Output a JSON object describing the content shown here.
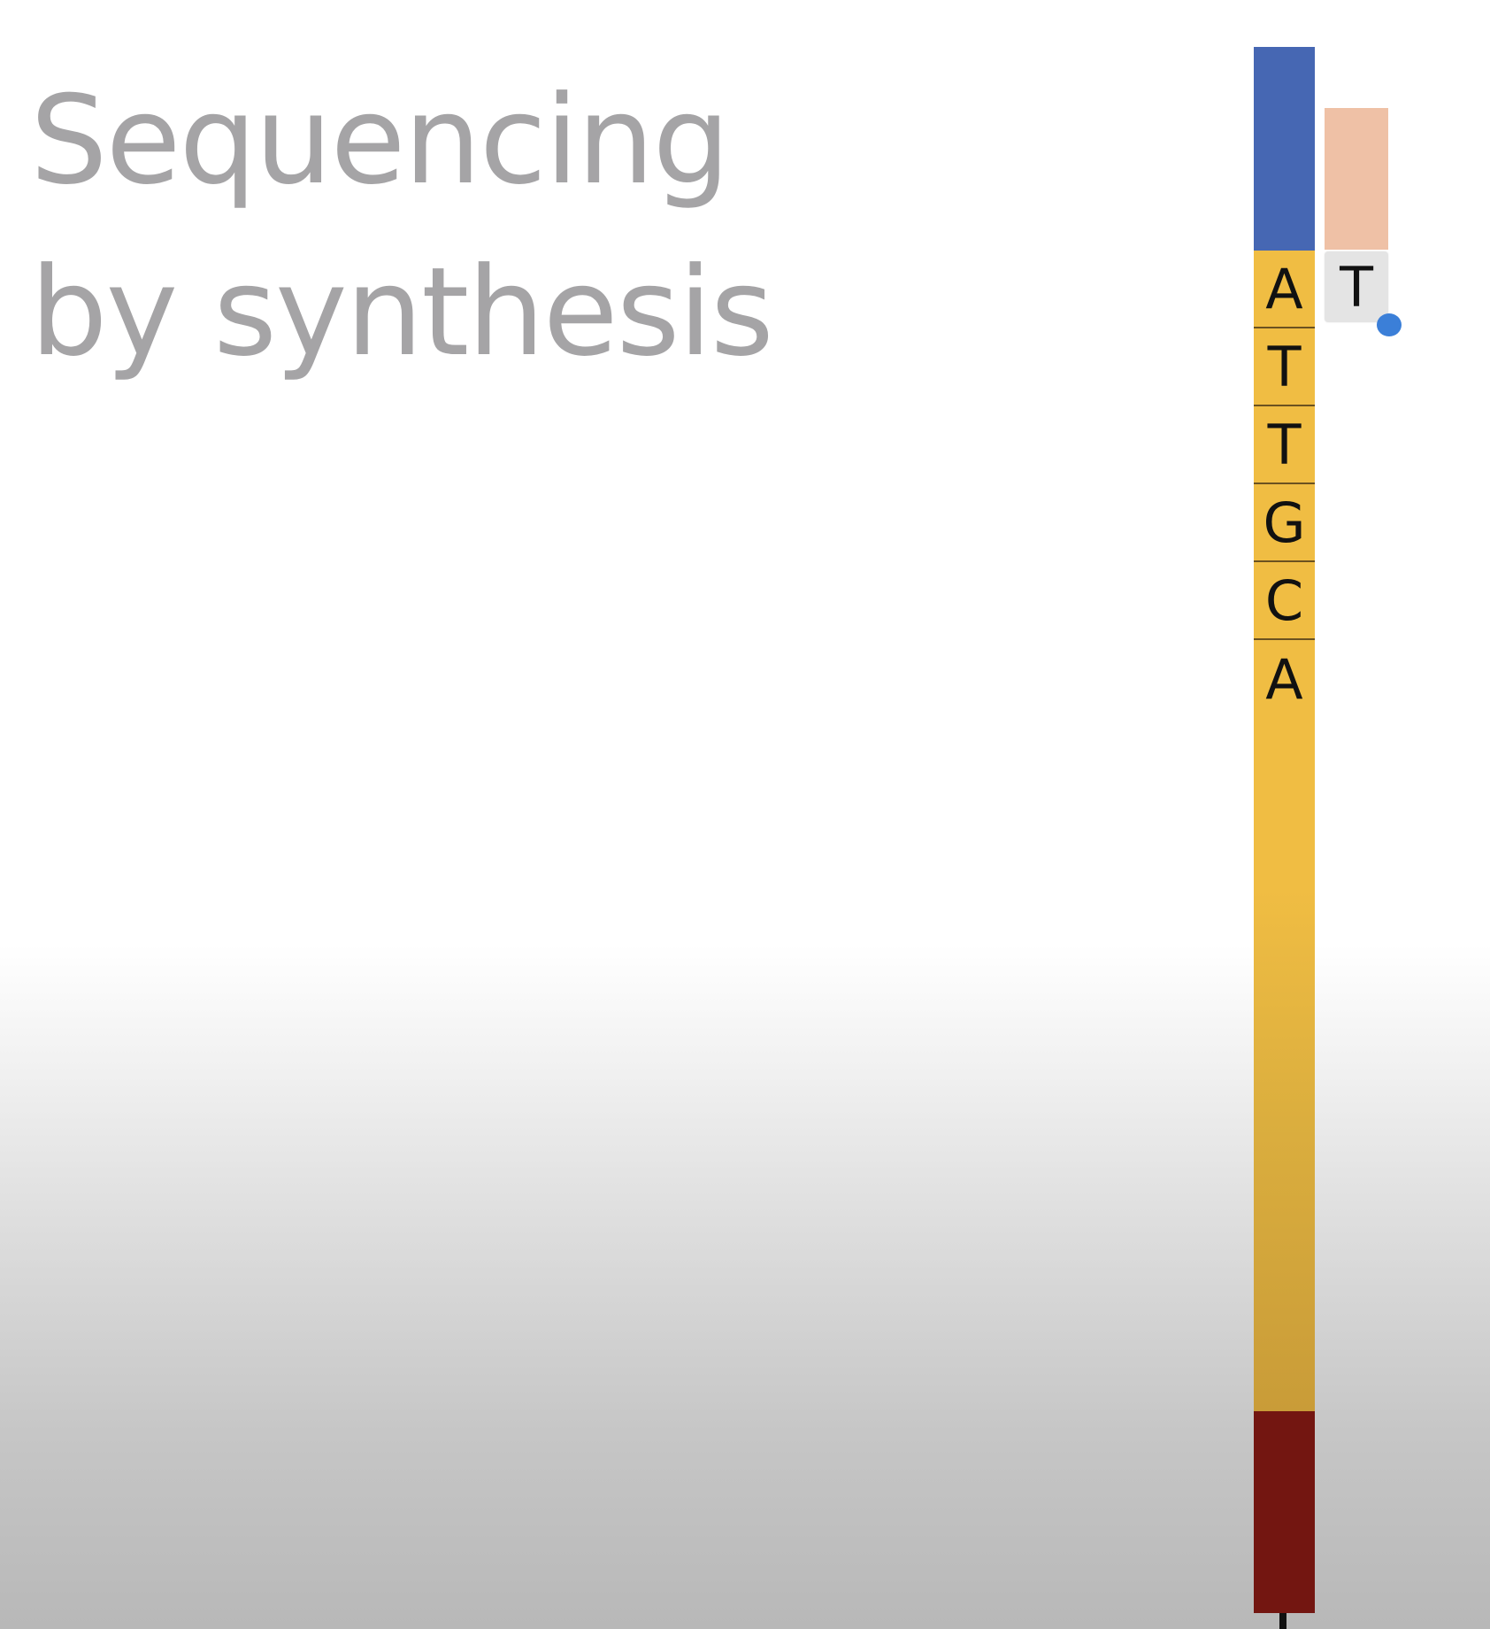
{
  "title": {
    "line1": "Sequencing",
    "line2": "by synthesis"
  },
  "template_strand": {
    "bases": [
      "A",
      "T",
      "T",
      "G",
      "C",
      "A"
    ],
    "colors": {
      "blue_segment": "#4667b3",
      "yellow_segment": "#f0bd43",
      "red_segment": "#731611"
    }
  },
  "incoming_nucleotide": {
    "base": "T",
    "colors": {
      "block": "#efc1a6",
      "tag": "#3b7fd8"
    }
  }
}
